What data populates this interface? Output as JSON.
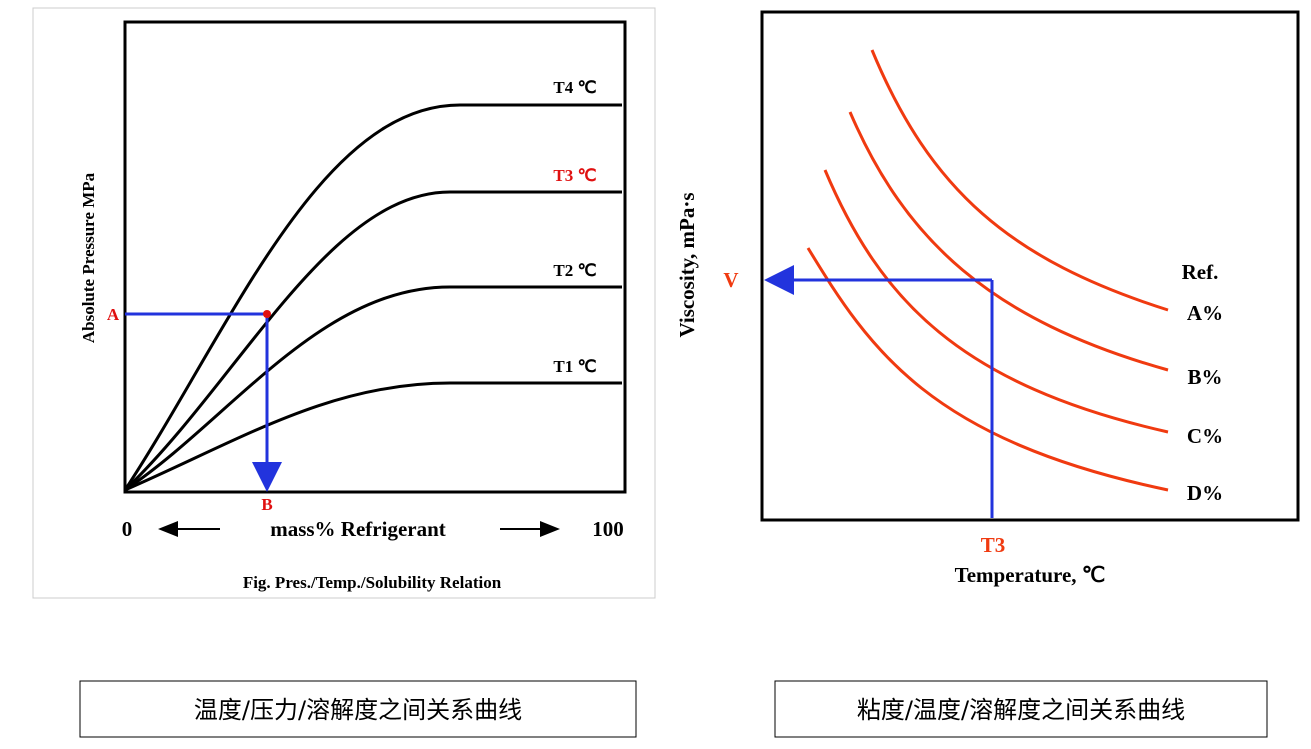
{
  "left_diagram": {
    "y_label": "Absolute Pressure MPa",
    "x_start": "0",
    "x_label": "mass% Refrigerant",
    "x_end": "100",
    "caption": "Fig. Pres./Temp./Solubility Relation",
    "curve_labels": [
      "T4 ℃",
      "T3 ℃",
      "T2 ℃",
      "T1 ℃"
    ],
    "point_a": "A",
    "point_b": "B"
  },
  "right_diagram": {
    "y_label": "Viscosity, mPa·s",
    "x_label": "Temperature, ℃",
    "point_v": "V",
    "point_t": "T3",
    "legend_title": "Ref.",
    "curve_labels": [
      "A%",
      "B%",
      "C%",
      "D%"
    ]
  },
  "captions": [
    "温度/压力/溶解度之间关系曲线",
    "粘度/温度/溶解度之间关系曲线"
  ]
}
